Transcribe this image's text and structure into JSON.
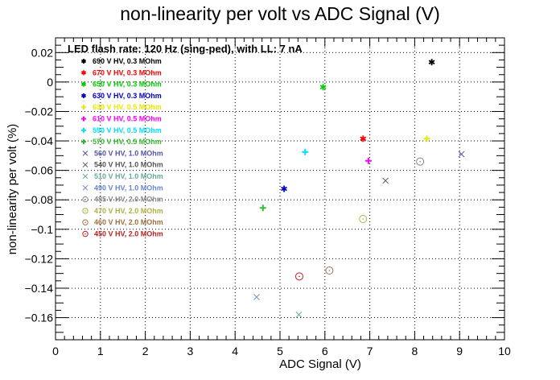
{
  "chart_data": {
    "type": "scatter",
    "title": "non-linearity per volt vs ADC Signal (V)",
    "xlabel": "ADC Signal (V)",
    "ylabel": "non-linearity per volt (%)",
    "xlim": [
      0,
      10
    ],
    "ylim": [
      -0.175,
      0.03
    ],
    "xticks": [
      0,
      1,
      2,
      3,
      4,
      5,
      6,
      7,
      8,
      9,
      10
    ],
    "yticks": [
      0.02,
      0,
      -0.02,
      -0.04,
      -0.06,
      -0.08,
      -0.1,
      -0.12,
      -0.14,
      -0.16
    ],
    "ytick_labels": [
      "0.02",
      "0",
      "−0.02",
      "−0.04",
      "−0.06",
      "−0.08",
      "−0.1",
      "−0.12",
      "−0.14",
      "−0.16"
    ],
    "grid": true,
    "legend_header": "LED flash rate: 120 Hz  (sing-ped), with LL: 7 nA",
    "legend_position": "top-left",
    "series": [
      {
        "name": "690 V HV, 0.3 MOhm",
        "color": "#000000",
        "marker": "star",
        "points": [
          [
            8.38,
            0.0135
          ]
        ]
      },
      {
        "name": "670 V HV, 0.3 MOhm",
        "color": "#ff0000",
        "marker": "star",
        "points": [
          [
            6.85,
            -0.0385
          ]
        ]
      },
      {
        "name": "650 V HV, 0.3 MOhm",
        "color": "#00cc00",
        "marker": "star",
        "points": [
          [
            5.96,
            -0.0035
          ]
        ]
      },
      {
        "name": "630 V HV, 0.3 MOhm",
        "color": "#0000cc",
        "marker": "star",
        "points": [
          [
            5.09,
            -0.0725
          ]
        ]
      },
      {
        "name": "630 V HV, 0.5 MOhm",
        "color": "#e8e800",
        "marker": "plus",
        "points": [
          [
            8.27,
            -0.0385
          ]
        ]
      },
      {
        "name": "610 V HV, 0.5 MOhm",
        "color": "#ff00ff",
        "marker": "plus",
        "points": [
          [
            6.97,
            -0.0535
          ]
        ]
      },
      {
        "name": "590 V HV, 0.5 MOhm",
        "color": "#00e0ff",
        "marker": "plus",
        "points": [
          [
            5.56,
            -0.0475
          ]
        ]
      },
      {
        "name": "570 V HV, 0.5 MOhm",
        "color": "#33bb33",
        "marker": "plus",
        "points": [
          [
            4.62,
            -0.0855
          ]
        ]
      },
      {
        "name": "560 V HV, 1.0 MOhm",
        "color": "#5555aa",
        "marker": "x",
        "points": [
          [
            9.04,
            -0.049
          ]
        ]
      },
      {
        "name": "540 V HV, 1.0 MOhm",
        "color": "#555555",
        "marker": "x",
        "points": [
          [
            7.35,
            -0.067
          ]
        ]
      },
      {
        "name": "510 V HV, 1.0 MOhm",
        "color": "#66aa99",
        "marker": "x",
        "points": [
          [
            5.42,
            -0.158
          ]
        ]
      },
      {
        "name": "490 V HV, 1.0 MOhm",
        "color": "#6688cc",
        "marker": "x",
        "points": [
          [
            4.48,
            -0.146
          ]
        ]
      },
      {
        "name": "485 V HV, 2.0 MOhm",
        "color": "#888888",
        "marker": "circle",
        "points": [
          [
            8.12,
            -0.054
          ]
        ]
      },
      {
        "name": "470 V HV, 2.0 MOhm",
        "color": "#b0b040",
        "marker": "circle",
        "points": [
          [
            6.85,
            -0.093
          ]
        ]
      },
      {
        "name": "460 V HV, 2.0 MOhm",
        "color": "#a07040",
        "marker": "circle",
        "points": [
          [
            6.1,
            -0.128
          ]
        ]
      },
      {
        "name": "450 V HV, 2.0 MOhm",
        "color": "#bb2222",
        "marker": "circle",
        "points": [
          [
            5.43,
            -0.132
          ]
        ]
      }
    ]
  }
}
